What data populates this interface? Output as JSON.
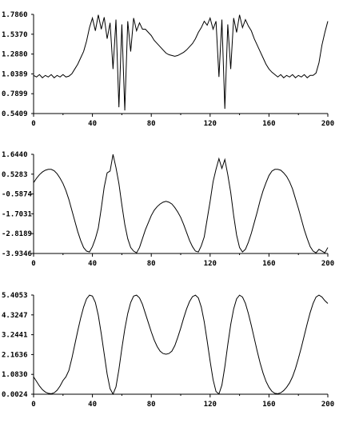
{
  "chart_data": [
    {
      "type": "line",
      "title": "",
      "xlabel": "",
      "ylabel": "",
      "xlim": [
        0,
        200
      ],
      "ylim": [
        0.5409,
        1.786
      ],
      "x_ticks": [
        "0",
        "40",
        "80",
        "120",
        "160",
        "200"
      ],
      "y_ticks": [
        "0.5409",
        "0.7899",
        "1.0389",
        "1.2880",
        "1.5370",
        "1.7860"
      ],
      "series": [
        {
          "x": [
            0,
            2,
            4,
            6,
            8,
            10,
            12,
            14,
            16,
            18,
            20,
            22,
            24,
            26,
            28,
            30,
            32,
            34,
            36,
            38,
            40,
            42,
            44,
            46,
            48,
            50,
            52,
            54,
            56,
            58,
            60,
            62,
            64,
            66,
            68,
            70,
            72,
            74,
            76,
            78,
            80,
            82,
            84,
            86,
            88,
            90,
            92,
            94,
            96,
            98,
            100,
            102,
            104,
            106,
            108,
            110,
            112,
            114,
            116,
            118,
            120,
            122,
            124,
            126,
            128,
            130,
            132,
            134,
            136,
            138,
            140,
            142,
            144,
            146,
            148,
            150,
            152,
            154,
            156,
            158,
            160,
            162,
            164,
            166,
            168,
            170,
            172,
            174,
            176,
            178,
            180,
            182,
            184,
            186,
            188,
            190,
            192,
            194,
            196,
            198,
            200
          ],
          "y": [
            1.02,
            1.0,
            1.03,
            0.99,
            1.02,
            1.0,
            1.03,
            0.99,
            1.02,
            1.0,
            1.03,
            1.0,
            1.01,
            1.04,
            1.1,
            1.16,
            1.24,
            1.32,
            1.45,
            1.62,
            1.74,
            1.58,
            1.78,
            1.6,
            1.75,
            1.48,
            1.68,
            1.1,
            1.72,
            0.62,
            1.66,
            0.58,
            1.7,
            1.32,
            1.74,
            1.58,
            1.68,
            1.6,
            1.6,
            1.56,
            1.52,
            1.46,
            1.42,
            1.38,
            1.34,
            1.3,
            1.28,
            1.27,
            1.26,
            1.27,
            1.29,
            1.31,
            1.34,
            1.38,
            1.42,
            1.48,
            1.56,
            1.62,
            1.7,
            1.65,
            1.74,
            1.6,
            1.7,
            1.0,
            1.72,
            0.6,
            1.66,
            1.1,
            1.74,
            1.56,
            1.78,
            1.62,
            1.72,
            1.64,
            1.58,
            1.48,
            1.4,
            1.32,
            1.24,
            1.16,
            1.1,
            1.06,
            1.03,
            1.0,
            1.03,
            0.99,
            1.02,
            1.0,
            1.03,
            0.99,
            1.02,
            1.0,
            1.03,
            0.99,
            1.02,
            1.02,
            1.05,
            1.18,
            1.4,
            1.56,
            1.7
          ]
        }
      ]
    },
    {
      "type": "line",
      "title": "",
      "xlabel": "",
      "ylabel": "",
      "xlim": [
        0,
        200
      ],
      "ylim": [
        -3.9346,
        1.644
      ],
      "x_ticks": [
        "0",
        "40",
        "80",
        "120",
        "160",
        "200"
      ],
      "y_ticks": [
        "-3.9346",
        "-2.8189",
        "-1.7031",
        "-0.5874",
        "0.5283",
        "1.6440"
      ],
      "series": [
        {
          "x": [
            0,
            2,
            4,
            6,
            8,
            10,
            12,
            14,
            16,
            18,
            20,
            22,
            24,
            26,
            28,
            30,
            32,
            34,
            36,
            38,
            40,
            42,
            44,
            46,
            48,
            50,
            52,
            54,
            56,
            58,
            60,
            62,
            64,
            66,
            68,
            70,
            72,
            74,
            76,
            78,
            80,
            82,
            84,
            86,
            88,
            90,
            92,
            94,
            96,
            98,
            100,
            102,
            104,
            106,
            108,
            110,
            112,
            114,
            116,
            118,
            120,
            122,
            124,
            126,
            128,
            130,
            132,
            134,
            136,
            138,
            140,
            142,
            144,
            146,
            148,
            150,
            152,
            154,
            156,
            158,
            160,
            162,
            164,
            166,
            168,
            170,
            172,
            174,
            176,
            178,
            180,
            182,
            184,
            186,
            188,
            190,
            192,
            194,
            196,
            198,
            200
          ],
          "y": [
            0.05,
            0.3,
            0.5,
            0.65,
            0.75,
            0.8,
            0.8,
            0.72,
            0.55,
            0.3,
            0.0,
            -0.4,
            -0.9,
            -1.5,
            -2.1,
            -2.7,
            -3.2,
            -3.6,
            -3.8,
            -3.85,
            -3.55,
            -3.1,
            -2.5,
            -1.4,
            -0.2,
            0.6,
            0.7,
            1.64,
            0.9,
            0.0,
            -1.2,
            -2.3,
            -3.1,
            -3.6,
            -3.8,
            -3.9,
            -3.6,
            -3.1,
            -2.6,
            -2.2,
            -1.8,
            -1.5,
            -1.3,
            -1.15,
            -1.05,
            -1.0,
            -1.05,
            -1.15,
            -1.35,
            -1.6,
            -1.9,
            -2.3,
            -2.75,
            -3.2,
            -3.55,
            -3.8,
            -3.85,
            -3.5,
            -3.0,
            -2.0,
            -1.0,
            0.1,
            0.8,
            1.4,
            0.85,
            1.35,
            0.5,
            -0.5,
            -1.8,
            -2.9,
            -3.6,
            -3.85,
            -3.7,
            -3.3,
            -2.8,
            -2.2,
            -1.6,
            -0.95,
            -0.4,
            0.05,
            0.45,
            0.7,
            0.8,
            0.8,
            0.75,
            0.6,
            0.4,
            0.1,
            -0.3,
            -0.85,
            -1.4,
            -2.0,
            -2.6,
            -3.1,
            -3.55,
            -3.8,
            -3.9,
            -3.7,
            -3.8,
            -3.9,
            -3.6
          ]
        }
      ]
    },
    {
      "type": "line",
      "title": "",
      "xlabel": "",
      "ylabel": "",
      "xlim": [
        0,
        200
      ],
      "ylim": [
        0.0024,
        5.4053
      ],
      "x_ticks": [
        "0",
        "40",
        "80",
        "120",
        "160",
        "200"
      ],
      "y_ticks": [
        "0.0024",
        "1.0830",
        "2.1636",
        "3.2441",
        "4.3247",
        "5.4053"
      ],
      "series": [
        {
          "x": [
            0,
            2,
            4,
            6,
            8,
            10,
            12,
            14,
            16,
            18,
            20,
            22,
            24,
            26,
            28,
            30,
            32,
            34,
            36,
            38,
            40,
            42,
            44,
            46,
            48,
            50,
            52,
            54,
            56,
            58,
            60,
            62,
            64,
            66,
            68,
            70,
            72,
            74,
            76,
            78,
            80,
            82,
            84,
            86,
            88,
            90,
            92,
            94,
            96,
            98,
            100,
            102,
            104,
            106,
            108,
            110,
            112,
            114,
            116,
            118,
            120,
            122,
            124,
            126,
            128,
            130,
            132,
            134,
            136,
            138,
            140,
            142,
            144,
            146,
            148,
            150,
            152,
            154,
            156,
            158,
            160,
            162,
            164,
            166,
            168,
            170,
            172,
            174,
            176,
            178,
            180,
            182,
            184,
            186,
            188,
            190,
            192,
            194,
            196,
            198,
            200
          ],
          "y": [
            0.95,
            0.7,
            0.45,
            0.25,
            0.12,
            0.05,
            0.03,
            0.08,
            0.22,
            0.45,
            0.75,
            0.95,
            1.3,
            1.95,
            2.7,
            3.45,
            4.15,
            4.75,
            5.2,
            5.4,
            5.35,
            5.0,
            4.3,
            3.3,
            2.2,
            1.1,
            0.3,
            0.01,
            0.4,
            1.35,
            2.5,
            3.55,
            4.4,
            5.0,
            5.35,
            5.4,
            5.25,
            4.9,
            4.4,
            3.9,
            3.4,
            2.95,
            2.6,
            2.35,
            2.22,
            2.18,
            2.22,
            2.35,
            2.65,
            3.1,
            3.6,
            4.15,
            4.65,
            5.05,
            5.32,
            5.4,
            5.25,
            4.75,
            3.95,
            2.9,
            1.8,
            0.8,
            0.15,
            0.02,
            0.5,
            1.5,
            2.7,
            3.8,
            4.65,
            5.2,
            5.4,
            5.3,
            4.95,
            4.4,
            3.75,
            3.05,
            2.35,
            1.7,
            1.15,
            0.7,
            0.38,
            0.16,
            0.05,
            0.03,
            0.08,
            0.2,
            0.38,
            0.62,
            0.95,
            1.4,
            1.95,
            2.55,
            3.2,
            3.85,
            4.45,
            4.95,
            5.3,
            5.4,
            5.3,
            5.1,
            4.95
          ]
        }
      ]
    }
  ]
}
